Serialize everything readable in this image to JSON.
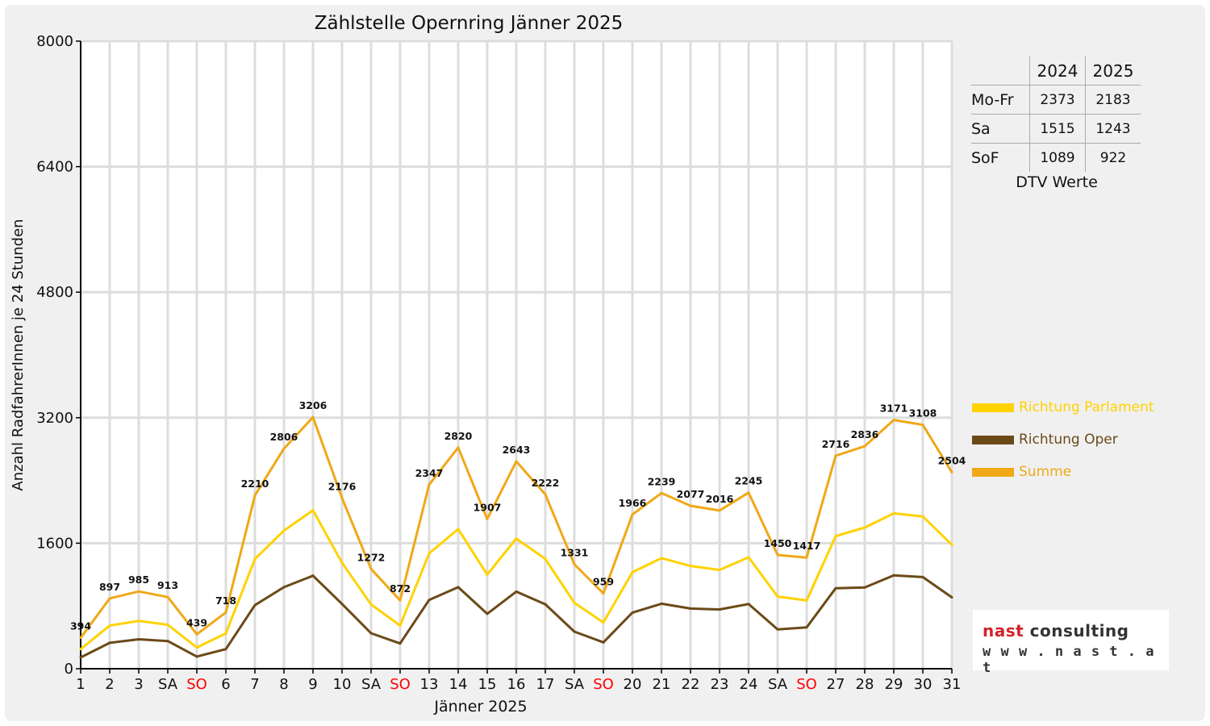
{
  "chart_data": {
    "type": "line",
    "title": "Zählstelle Opernring Jänner 2025",
    "xlabel": "Jänner 2025",
    "ylabel": "Anzahl RadfahrerInnen je 24 Stunden",
    "ylim": [
      0,
      8000
    ],
    "yticks": [
      0,
      1600,
      3200,
      4800,
      6400,
      8000
    ],
    "grid": true,
    "legend_position": "right",
    "categories": [
      "1",
      "2",
      "3",
      "SA",
      "SO",
      "6",
      "7",
      "8",
      "9",
      "10",
      "SA",
      "SO",
      "13",
      "14",
      "15",
      "16",
      "17",
      "SA",
      "SO",
      "20",
      "21",
      "22",
      "23",
      "24",
      "SA",
      "SO",
      "27",
      "28",
      "29",
      "30",
      "31"
    ],
    "category_colors": {
      "SO": "#ff0000"
    },
    "series": [
      {
        "name": "Richtung Parlament",
        "color": "#ffd200",
        "values": [
          250,
          550,
          610,
          560,
          270,
          450,
          1400,
          1760,
          2020,
          1350,
          820,
          550,
          1470,
          1780,
          1200,
          1660,
          1400,
          840,
          590,
          1230,
          1410,
          1310,
          1260,
          1420,
          920,
          870,
          1690,
          1800,
          1980,
          1940,
          1580
        ]
      },
      {
        "name": "Richtung Oper",
        "color": "#6b4a18",
        "values": [
          144,
          330,
          375,
          353,
          155,
          250,
          810,
          1040,
          1186,
          826,
          452,
          322,
          877,
          1040,
          700,
          983,
          822,
          473,
          336,
          716,
          829,
          767,
          756,
          825,
          502,
          528,
          1026,
          1036,
          1191,
          1168,
          910
        ]
      },
      {
        "name": "Summe",
        "color": "#f0a818",
        "values": [
          394,
          897,
          985,
          913,
          439,
          718,
          2210,
          2806,
          3206,
          2176,
          1272,
          872,
          2347,
          2820,
          1907,
          2643,
          2222,
          1331,
          959,
          1966,
          2239,
          2077,
          2016,
          2245,
          1450,
          1417,
          2716,
          2836,
          3171,
          3108,
          2504
        ]
      }
    ],
    "labels": [
      "394",
      "897",
      "985",
      "913",
      "439",
      "718",
      "2210",
      "2806",
      "3206",
      "2176",
      "1272",
      "872",
      "2347",
      "2820",
      "1907",
      "2643",
      "2222",
      "1331",
      "959",
      "1966",
      "2239",
      "2077",
      "2016",
      "2245",
      "1450",
      "1417",
      "2716",
      "2836",
      "3171",
      "3108",
      "2504"
    ]
  },
  "dtv": {
    "caption": "DTV Werte",
    "columns": [
      "2024",
      "2025"
    ],
    "rows": [
      {
        "label": "Mo-Fr",
        "v2024": "2373",
        "v2025": "2183"
      },
      {
        "label": "Sa",
        "v2024": "1515",
        "v2025": "1243"
      },
      {
        "label": "SoF",
        "v2024": "1089",
        "v2025": "922"
      }
    ]
  },
  "legend": [
    {
      "label": "Richtung Parlament",
      "color": "#ffd200"
    },
    {
      "label": "Richtung Oper",
      "color": "#6b4a18"
    },
    {
      "label": "Summe",
      "color": "#f0a818"
    }
  ],
  "logo": {
    "line1_a": "nast",
    "line1_b": "consulting",
    "line2": "w w w . n a s t . a t"
  }
}
